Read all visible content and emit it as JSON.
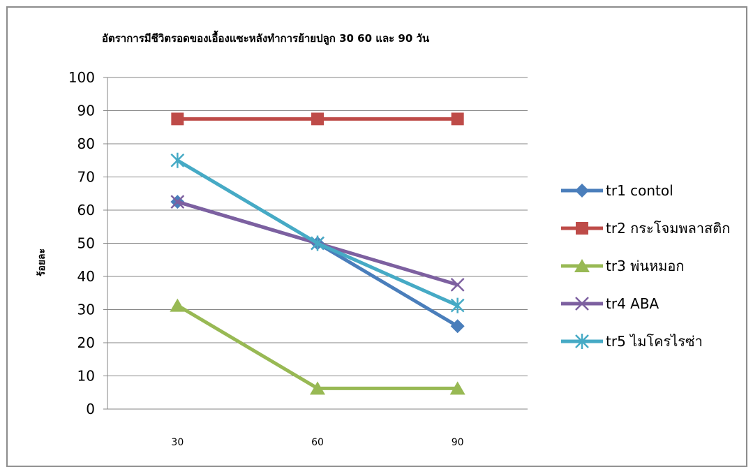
{
  "chart_data": {
    "type": "line",
    "title": "อัตราการมีชีวิตรอดของเอื้องแซะหลังทำการย้ายปลูก 30 60 และ 90 วัน",
    "xlabel": "",
    "ylabel": "ร้อยละ",
    "categories": [
      "30",
      "60",
      "90"
    ],
    "ylim": [
      0,
      100
    ],
    "yticks": [
      "0",
      "10",
      "20",
      "30",
      "40",
      "50",
      "60",
      "70",
      "80",
      "90",
      "100"
    ],
    "grid": true,
    "legend_position": "right",
    "series": [
      {
        "name": "tr1 contol",
        "values": [
          62.5,
          50,
          25
        ],
        "color": "#4a7ebb",
        "marker": "diamond"
      },
      {
        "name": "tr2 กระโจมพลาสติก",
        "values": [
          87.5,
          87.5,
          87.5
        ],
        "color": "#be4b48",
        "marker": "square"
      },
      {
        "name": "tr3 พ่นหมอก",
        "values": [
          31.25,
          6.25,
          6.25
        ],
        "color": "#98b954",
        "marker": "triangle"
      },
      {
        "name": "tr4 ABA",
        "values": [
          62.5,
          50,
          37.5
        ],
        "color": "#7d60a0",
        "marker": "x"
      },
      {
        "name": "tr5 ไมโครไรซ่า",
        "values": [
          75,
          50,
          31.25
        ],
        "color": "#46aac5",
        "marker": "star"
      }
    ]
  }
}
